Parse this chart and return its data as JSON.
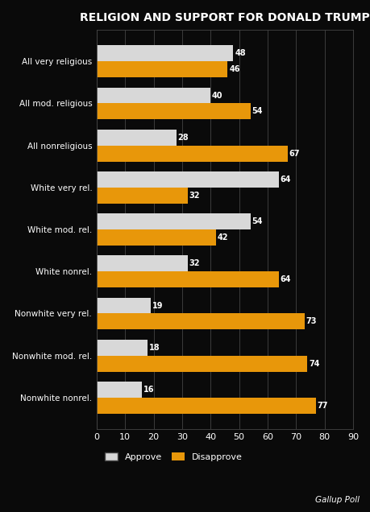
{
  "title": "RELIGION AND SUPPORT FOR DONALD TRUMP",
  "categories": [
    "All very religious",
    "All mod. religious",
    "All nonreligious",
    "White very rel.",
    "White mod. rel.",
    "White nonrel.",
    "Nonwhite very rel.",
    "Nonwhite mod. rel.",
    "Nonwhite nonrel."
  ],
  "approve": [
    48,
    40,
    28,
    64,
    54,
    32,
    19,
    18,
    16
  ],
  "disapprove": [
    46,
    54,
    67,
    32,
    42,
    64,
    73,
    74,
    77
  ],
  "approve_color": "#d8d8d8",
  "disapprove_color": "#e8970a",
  "bg_color": "#0a0a0a",
  "text_color": "#ffffff",
  "grid_color": "#444444",
  "bar_height": 0.38,
  "xlim": [
    0,
    90
  ],
  "xticks": [
    0,
    10,
    20,
    30,
    40,
    50,
    60,
    70,
    80,
    90
  ],
  "legend_approve": "Approve",
  "legend_disapprove": "Disapprove",
  "source_text": "Gallup Poll",
  "title_fontsize": 10,
  "label_fontsize": 7.5,
  "tick_fontsize": 8,
  "legend_fontsize": 8,
  "value_fontsize": 7
}
